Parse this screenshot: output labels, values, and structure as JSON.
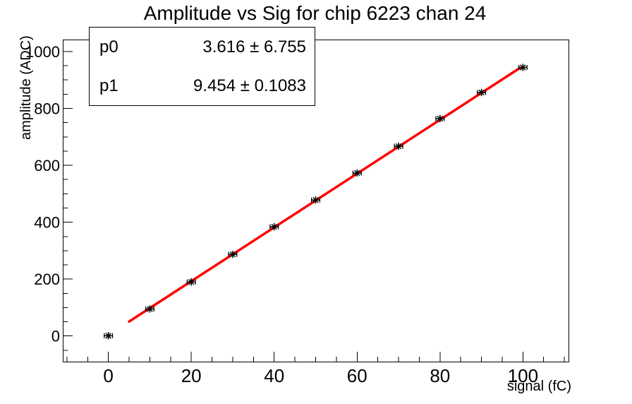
{
  "title": "Amplitude vs Sig for chip 6223 chan 24",
  "stats_box": {
    "rows": [
      {
        "param": "p0",
        "value": "3.616 ± 6.755"
      },
      {
        "param": "p1",
        "value": "9.454 ± 0.1083"
      }
    ]
  },
  "chart_data": {
    "type": "scatter",
    "title": "Amplitude vs Sig for chip 6223 chan 24",
    "xlabel": "signal (fC)",
    "ylabel": "amplitude (ADC)",
    "x": [
      0,
      10,
      20,
      30,
      40,
      50,
      60,
      70,
      80,
      90,
      100
    ],
    "y": [
      1,
      95,
      190,
      287,
      384,
      478,
      573,
      667,
      764,
      856,
      944
    ],
    "x_error": 1,
    "xlim": [
      -11,
      111
    ],
    "ylim": [
      -90,
      1042
    ],
    "x_major_ticks": [
      0,
      20,
      40,
      60,
      80,
      100
    ],
    "x_minor_step": 5,
    "y_major_ticks": [
      0,
      200,
      400,
      600,
      800,
      1000
    ],
    "y_minor_step": 50,
    "grid": false,
    "legend": false,
    "marker": "asterisk-with-x-error-bars",
    "fit": {
      "type": "linear",
      "p0": 3.616,
      "p0_err": 6.755,
      "p1": 9.454,
      "p1_err": 0.1083,
      "range": [
        5,
        99.3
      ]
    },
    "colors": {
      "background": "#ffffff",
      "frame": "#000000",
      "marker": "#000000",
      "fit_line": "#ff0000"
    }
  }
}
